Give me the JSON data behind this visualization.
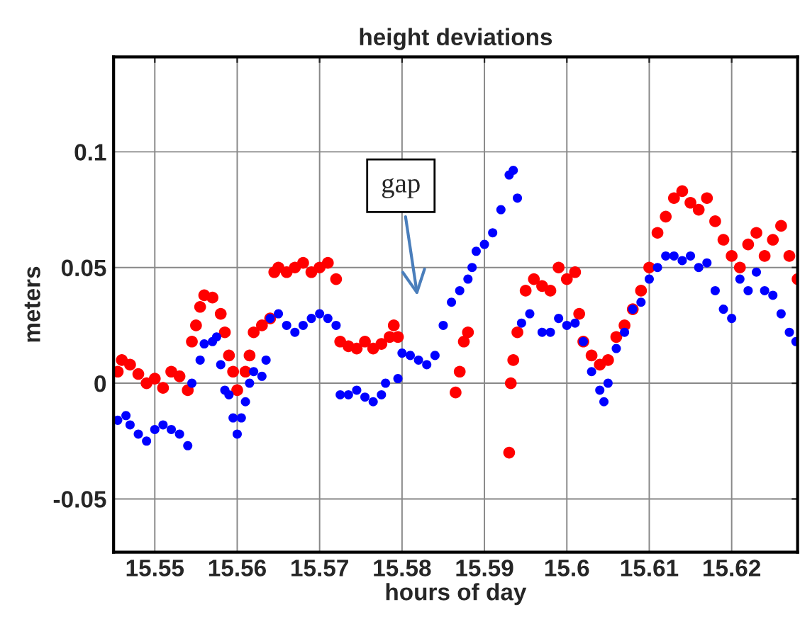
{
  "chart_data": {
    "type": "scatter",
    "title": "height deviations",
    "xlabel": "hours of day",
    "ylabel": "meters",
    "xlim": [
      15.545,
      15.628
    ],
    "xticks": [
      15.55,
      15.56,
      15.57,
      15.58,
      15.59,
      {
        "value": 15.6,
        "label": "15.6"
      },
      15.61,
      15.62
    ],
    "ylim": [
      -0.073,
      0.141
    ],
    "yticks": [
      -0.05,
      0,
      0.05,
      0.1
    ],
    "grid": true,
    "marker": "circle",
    "legend": false,
    "annotations": [
      "gap"
    ],
    "series": [
      {
        "color": "#ff0000",
        "x": [
          15.5455,
          15.546,
          15.547,
          15.548,
          15.549,
          15.55,
          15.551,
          15.552,
          15.553,
          15.554,
          15.5545,
          15.555,
          15.5555,
          15.556,
          15.557,
          15.558,
          15.5585,
          15.559,
          15.5595,
          15.56,
          15.561,
          15.5615,
          15.562,
          15.563,
          15.564,
          15.5645,
          15.565,
          15.566,
          15.567,
          15.568,
          15.569,
          15.57,
          15.571,
          15.572,
          15.5725,
          15.5735,
          15.5745,
          15.5755,
          15.5765,
          15.5775,
          15.5785,
          15.579,
          15.5795,
          15.5865,
          15.587,
          15.5875,
          15.588,
          15.593,
          15.5932,
          15.5935,
          15.594,
          15.595,
          15.596,
          15.597,
          15.598,
          15.599,
          15.6,
          15.601,
          15.6015,
          15.602,
          15.603,
          15.604,
          15.605,
          15.606,
          15.607,
          15.608,
          15.609,
          15.61,
          15.611,
          15.612,
          15.613,
          15.614,
          15.615,
          15.616,
          15.617,
          15.618,
          15.619,
          15.62,
          15.621,
          15.622,
          15.623,
          15.624,
          15.625,
          15.626,
          15.627,
          15.628
        ],
        "values": [
          0.005,
          0.01,
          0.008,
          0.004,
          0.0,
          0.002,
          -0.002,
          0.005,
          0.003,
          -0.003,
          0.018,
          0.025,
          0.033,
          0.038,
          0.037,
          0.03,
          0.022,
          0.012,
          0.005,
          -0.003,
          0.005,
          0.012,
          0.022,
          0.025,
          0.028,
          0.048,
          0.05,
          0.048,
          0.05,
          0.052,
          0.048,
          0.05,
          0.052,
          0.045,
          0.018,
          0.016,
          0.015,
          0.018,
          0.015,
          0.017,
          0.02,
          0.025,
          0.02,
          -0.004,
          0.005,
          0.018,
          0.022,
          -0.03,
          0.0,
          0.01,
          0.022,
          0.04,
          0.045,
          0.042,
          0.04,
          0.05,
          0.045,
          0.048,
          0.03,
          0.018,
          0.012,
          0.008,
          0.01,
          0.02,
          0.025,
          0.032,
          0.04,
          0.05,
          0.065,
          0.072,
          0.08,
          0.083,
          0.078,
          0.075,
          0.08,
          0.07,
          0.062,
          0.055,
          0.05,
          0.06,
          0.065,
          0.055,
          0.062,
          0.068,
          0.055,
          0.045
        ]
      },
      {
        "color": "#0000ff",
        "x": [
          15.5455,
          15.5465,
          15.547,
          15.548,
          15.549,
          15.55,
          15.551,
          15.552,
          15.553,
          15.554,
          15.5545,
          15.5555,
          15.556,
          15.557,
          15.5575,
          15.558,
          15.5585,
          15.559,
          15.5595,
          15.56,
          15.5605,
          15.561,
          15.5615,
          15.562,
          15.563,
          15.5635,
          15.564,
          15.565,
          15.566,
          15.567,
          15.568,
          15.569,
          15.57,
          15.571,
          15.572,
          15.5725,
          15.5735,
          15.5745,
          15.5755,
          15.5765,
          15.5775,
          15.578,
          15.5795,
          15.58,
          15.581,
          15.582,
          15.583,
          15.584,
          15.585,
          15.586,
          15.587,
          15.588,
          15.5885,
          15.589,
          15.59,
          15.591,
          15.592,
          15.593,
          15.5935,
          15.594,
          15.5945,
          15.5955,
          15.597,
          15.598,
          15.599,
          15.6,
          15.601,
          15.602,
          15.603,
          15.604,
          15.6045,
          15.605,
          15.606,
          15.607,
          15.608,
          15.609,
          15.61,
          15.611,
          15.612,
          15.613,
          15.614,
          15.615,
          15.616,
          15.617,
          15.618,
          15.619,
          15.62,
          15.621,
          15.622,
          15.623,
          15.624,
          15.625,
          15.626,
          15.627,
          15.6278
        ],
        "values": [
          -0.016,
          -0.014,
          -0.018,
          -0.022,
          -0.025,
          -0.02,
          -0.018,
          -0.02,
          -0.022,
          -0.027,
          0.0,
          0.01,
          0.017,
          0.018,
          0.02,
          0.008,
          -0.003,
          -0.005,
          -0.015,
          -0.022,
          -0.015,
          -0.008,
          0.0,
          0.005,
          0.003,
          0.01,
          0.028,
          0.03,
          0.025,
          0.022,
          0.025,
          0.028,
          0.03,
          0.028,
          0.025,
          -0.005,
          -0.005,
          -0.003,
          -0.006,
          -0.008,
          -0.005,
          0.0,
          0.002,
          0.013,
          0.012,
          0.01,
          0.008,
          0.012,
          0.025,
          0.035,
          0.04,
          0.045,
          0.05,
          0.057,
          0.06,
          0.065,
          0.075,
          0.09,
          0.092,
          0.08,
          0.026,
          0.03,
          0.022,
          0.022,
          0.028,
          0.025,
          0.026,
          0.018,
          0.005,
          -0.003,
          -0.008,
          0.0,
          0.015,
          0.022,
          0.032,
          0.035,
          0.045,
          0.05,
          0.055,
          0.055,
          0.053,
          0.055,
          0.05,
          0.052,
          0.04,
          0.032,
          0.028,
          0.045,
          0.04,
          0.048,
          0.04,
          0.038,
          0.03,
          0.022,
          0.018
        ]
      }
    ]
  }
}
